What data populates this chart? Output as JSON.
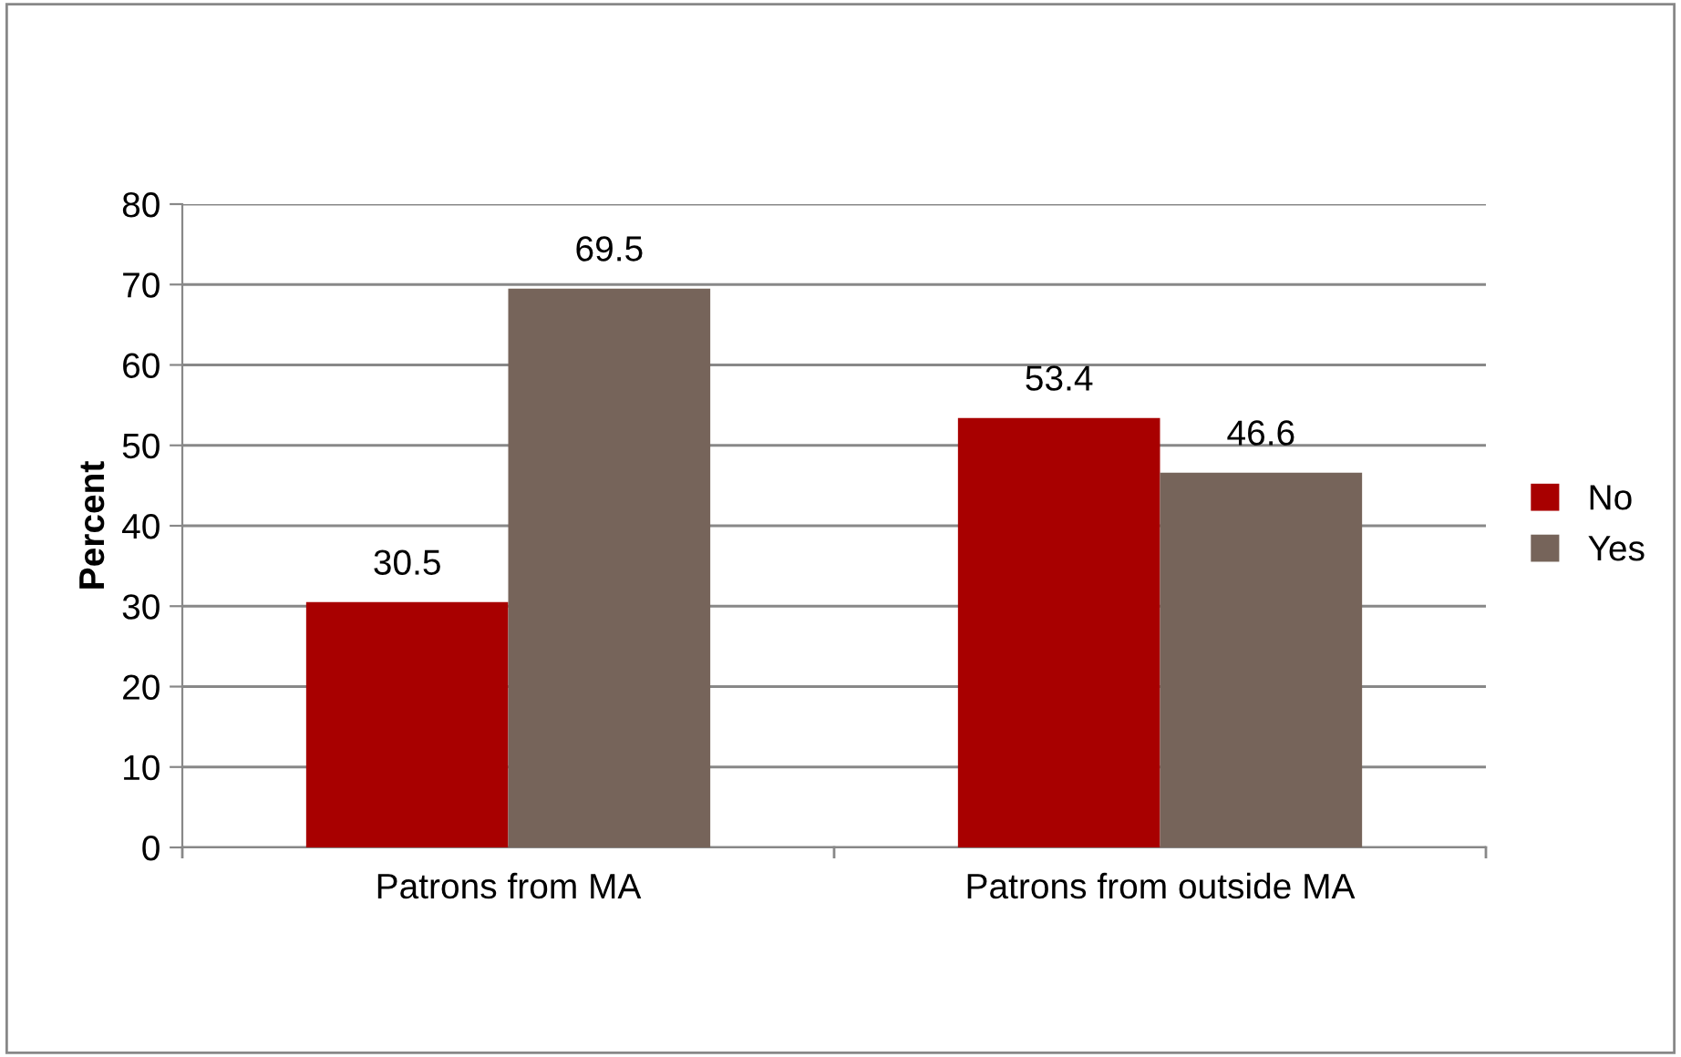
{
  "chart_data": {
    "type": "bar",
    "ylabel": "Percent",
    "categories": [
      "Patrons from MA",
      "Patrons from outside MA"
    ],
    "series": [
      {
        "name": "No",
        "color": "#a80000",
        "values": [
          30.5,
          53.4
        ]
      },
      {
        "name": "Yes",
        "color": "#76645a",
        "values": [
          69.5,
          46.6
        ]
      }
    ],
    "ylim": [
      0,
      80
    ],
    "yticks": [
      0,
      10,
      20,
      30,
      40,
      50,
      60,
      70,
      80
    ],
    "grid": "y",
    "legend": "right",
    "data_labels": true
  }
}
